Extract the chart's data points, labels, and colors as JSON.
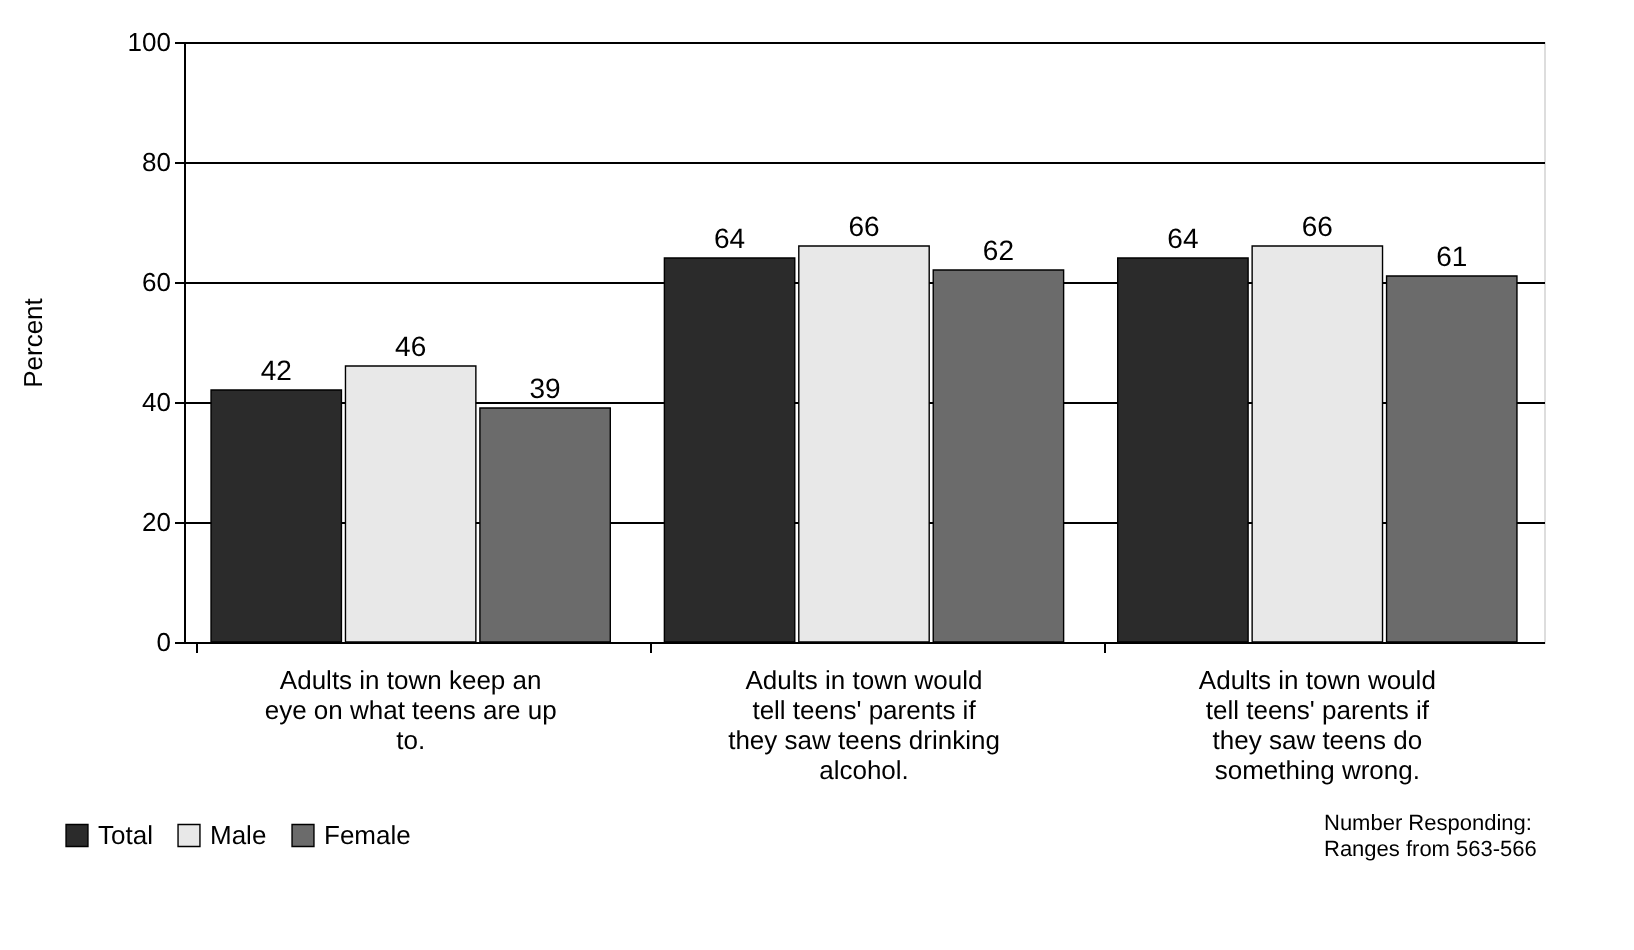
{
  "chart_data": {
    "type": "bar",
    "ylabel": "Percent",
    "categories": [
      "Adults in town keep an eye on what teens are up to.",
      "Adults in town would tell teens' parents if they saw teens drinking alcohol.",
      "Adults in town would tell teens' parents if they saw teens do something wrong."
    ],
    "series": [
      {
        "name": "Total",
        "color": "#2b2b2b",
        "values": [
          42,
          64,
          64
        ]
      },
      {
        "name": "Male",
        "color": "#e8e8e8",
        "values": [
          46,
          66,
          66
        ]
      },
      {
        "name": "Female",
        "color": "#6b6b6b",
        "values": [
          39,
          62,
          61
        ]
      }
    ],
    "ylim": [
      0,
      100
    ],
    "yticks": [
      0,
      20,
      40,
      60,
      80,
      100
    ],
    "grid": "y",
    "legend": "bottom left",
    "data_labels": true,
    "annotations": [
      "Number Responding: Ranges from 563-566"
    ]
  }
}
